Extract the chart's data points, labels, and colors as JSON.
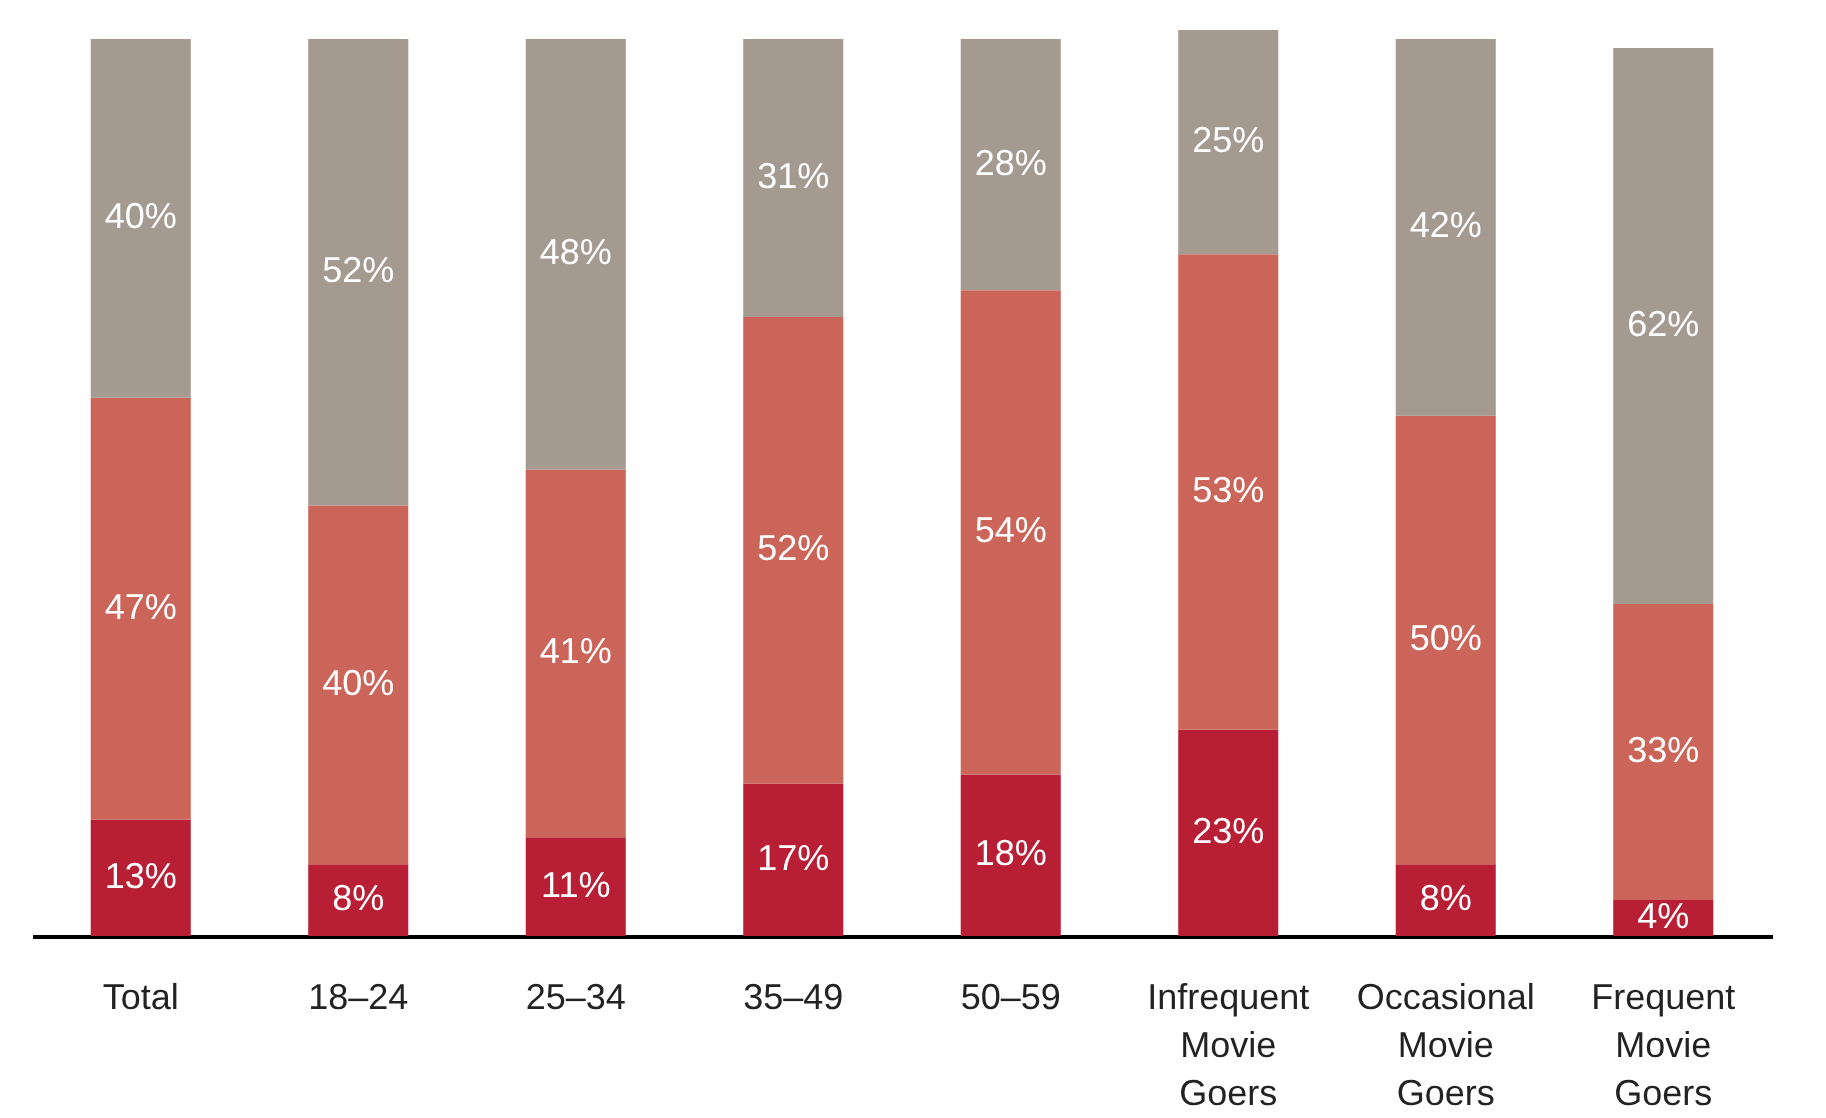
{
  "chart_data": {
    "type": "bar",
    "stacked": true,
    "categories": [
      "Total",
      "18–24",
      "25–34",
      "35–49",
      "50–59",
      "Infrequent Movie Goers",
      "Occasional Movie Goers",
      "Frequent Movie Goers"
    ],
    "series": [
      {
        "color": "#b81f35",
        "values": [
          13,
          8,
          11,
          17,
          18,
          23,
          8,
          4
        ],
        "value_labels": [
          "13%",
          "8%",
          "11%",
          "17%",
          "18%",
          "23%",
          "8%",
          "4%"
        ]
      },
      {
        "color": "#cb655a",
        "values": [
          47,
          40,
          41,
          52,
          54,
          53,
          50,
          33
        ],
        "value_labels": [
          "47%",
          "40%",
          "41%",
          "52%",
          "54%",
          "53%",
          "50%",
          "33%"
        ]
      },
      {
        "color": "#a59a90",
        "values": [
          40,
          52,
          48,
          31,
          28,
          25,
          42,
          62
        ],
        "value_labels": [
          "40%",
          "52%",
          "48%",
          "31%",
          "28%",
          "25%",
          "42%",
          "62%"
        ]
      }
    ],
    "legend": false
  }
}
